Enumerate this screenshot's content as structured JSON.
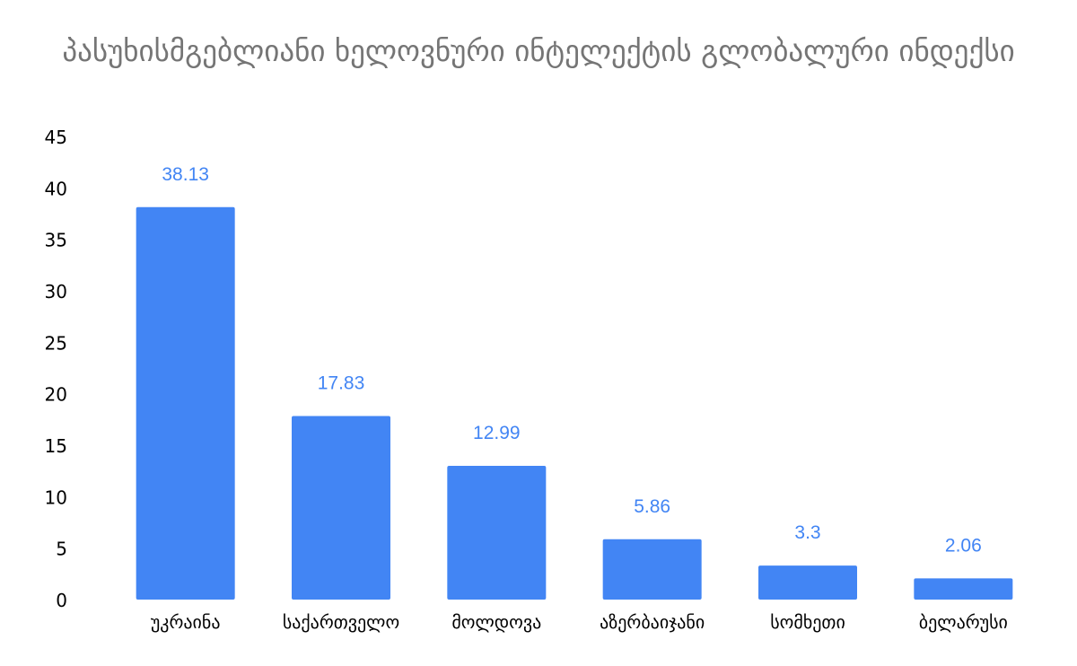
{
  "chart_data": {
    "type": "bar",
    "title": "პასუხისმგებლიანი ხელოვნური ინტელექტის გლობალური ინდექსი",
    "xlabel": "",
    "ylabel": "",
    "categories": [
      "უკრაინა",
      "საქართველო",
      "მოლდოვა",
      "აზერბაიჯანი",
      "სომხეთი",
      "ბელარუსი"
    ],
    "series": [
      {
        "values": [
          38.13,
          17.83,
          12.99,
          5.86,
          3.3,
          2.06
        ],
        "data_labels": [
          "38.13",
          "17.83",
          "12.99",
          "5.86",
          "3.3",
          "2.06"
        ]
      }
    ],
    "ylim": [
      0,
      45
    ],
    "yticks": [
      "0",
      "5",
      "10",
      "15",
      "20",
      "25",
      "30",
      "35",
      "40",
      "45"
    ],
    "grid": false,
    "legend": "none",
    "colors": {
      "bar": "#4285f4",
      "data_label": "#4285f4",
      "title": "#757575",
      "axis_text": "#000000"
    }
  }
}
